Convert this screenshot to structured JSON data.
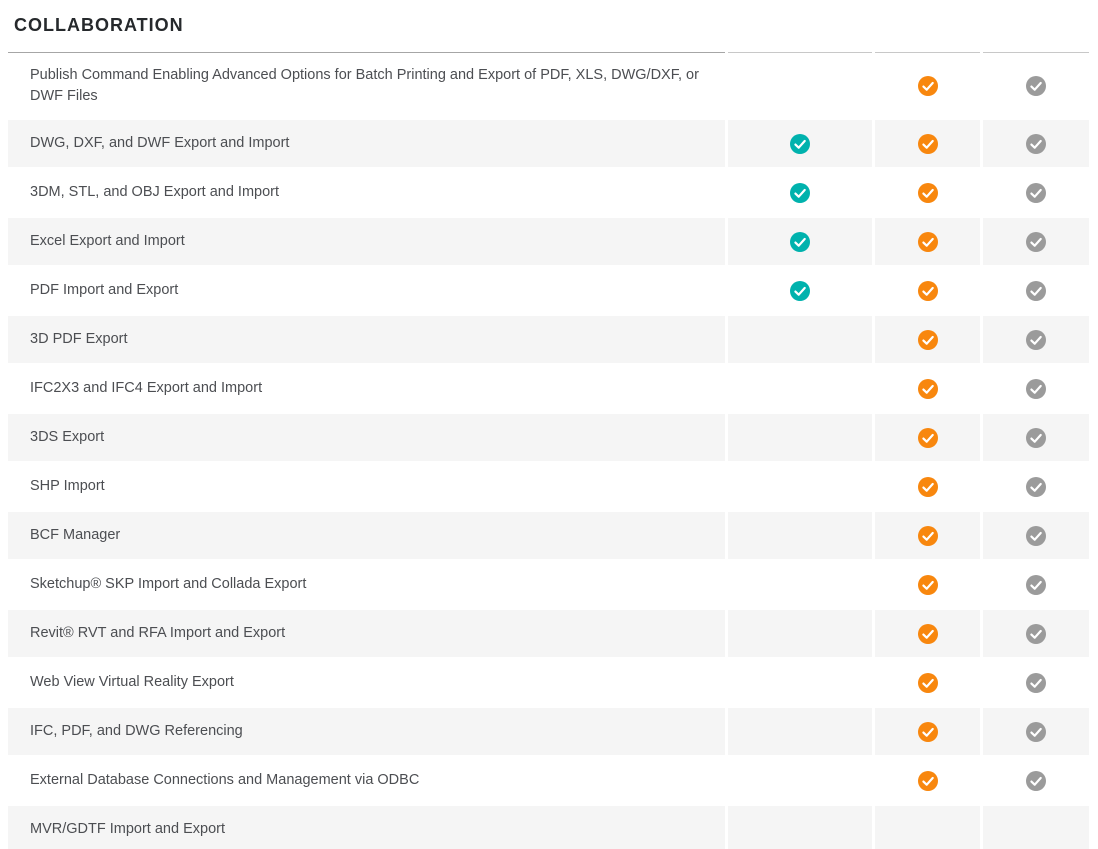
{
  "page": {
    "title": "COLLABORATION"
  },
  "colors": {
    "stripe": "#f5f5f5",
    "feature_text": "#4c4e52",
    "title_text": "#26292c",
    "rule_primary": "#a6a6a6",
    "rule_secondary": "#c8c8c8",
    "checkmark_stroke": "#ffffff",
    "check_teal": "#00b2ad",
    "check_orange": "#f8870e",
    "check_gray": "#9b9b9b"
  },
  "table": {
    "columns": [
      {
        "name": "plan-column-1",
        "check_color": "#00b2ad"
      },
      {
        "name": "plan-column-2",
        "check_color": "#f8870e"
      },
      {
        "name": "plan-column-3",
        "check_color": "#9b9b9b"
      }
    ],
    "rows": [
      {
        "feature": "Publish Command Enabling Advanced Options for Batch Printing and Export of PDF, XLS, DWG/DXF, or DWF Files",
        "checks": [
          false,
          true,
          true
        ]
      },
      {
        "feature": "DWG, DXF, and DWF Export and Import",
        "checks": [
          true,
          true,
          true
        ]
      },
      {
        "feature": "3DM, STL, and OBJ Export and Import",
        "checks": [
          true,
          true,
          true
        ]
      },
      {
        "feature": "Excel Export and Import",
        "checks": [
          true,
          true,
          true
        ]
      },
      {
        "feature": "PDF Import and Export",
        "checks": [
          true,
          true,
          true
        ]
      },
      {
        "feature": "3D PDF Export",
        "checks": [
          false,
          true,
          true
        ]
      },
      {
        "feature": "IFC2X3 and IFC4 Export and Import",
        "checks": [
          false,
          true,
          true
        ]
      },
      {
        "feature": "3DS Export",
        "checks": [
          false,
          true,
          true
        ]
      },
      {
        "feature": "SHP Import",
        "checks": [
          false,
          true,
          true
        ]
      },
      {
        "feature": "BCF Manager",
        "checks": [
          false,
          true,
          true
        ]
      },
      {
        "feature": "Sketchup® SKP Import and Collada Export",
        "checks": [
          false,
          true,
          true
        ]
      },
      {
        "feature": "Revit® RVT and RFA Import and Export",
        "checks": [
          false,
          true,
          true
        ]
      },
      {
        "feature": "Web View Virtual Reality Export",
        "checks": [
          false,
          true,
          true
        ]
      },
      {
        "feature": "IFC, PDF, and DWG Referencing",
        "checks": [
          false,
          true,
          true
        ]
      },
      {
        "feature": "External Database Connections and Management via ODBC",
        "checks": [
          false,
          true,
          true
        ]
      },
      {
        "feature": "MVR/GDTF Import and Export",
        "checks": [
          false,
          false,
          false
        ]
      }
    ]
  }
}
